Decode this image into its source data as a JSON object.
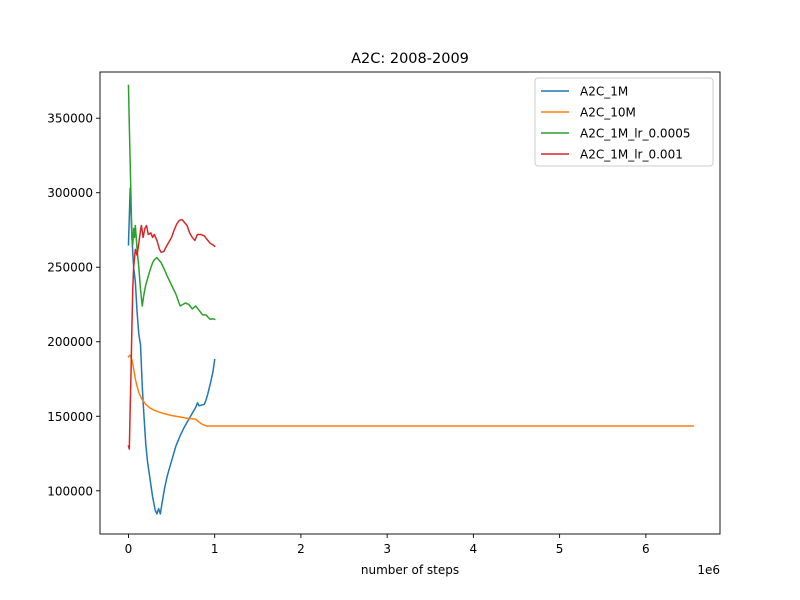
{
  "chart_data": {
    "type": "line",
    "title": "A2C: 2008-2009",
    "xlabel": "number of steps",
    "ylabel": "",
    "x_offset_label": "1e6",
    "xlim": [
      -0.33,
      6.86
    ],
    "ylim": [
      71000,
      381000
    ],
    "x_ticks": [
      0,
      1,
      2,
      3,
      4,
      5,
      6
    ],
    "x_tick_labels": [
      "0",
      "1",
      "2",
      "3",
      "4",
      "5",
      "6"
    ],
    "y_ticks": [
      100000,
      150000,
      200000,
      250000,
      300000,
      350000
    ],
    "y_tick_labels": [
      "100000",
      "150000",
      "200000",
      "250000",
      "300000",
      "350000"
    ],
    "grid": false,
    "legend_position": "upper right",
    "series": [
      {
        "name": "A2C_1M",
        "color": "#1f77b4",
        "points": [
          [
            0.0,
            265000
          ],
          [
            0.02,
            303000
          ],
          [
            0.04,
            270000
          ],
          [
            0.06,
            250000
          ],
          [
            0.08,
            240000
          ],
          [
            0.1,
            220000
          ],
          [
            0.12,
            205000
          ],
          [
            0.14,
            198000
          ],
          [
            0.16,
            170000
          ],
          [
            0.18,
            150000
          ],
          [
            0.2,
            132000
          ],
          [
            0.22,
            120000
          ],
          [
            0.25,
            108000
          ],
          [
            0.28,
            96000
          ],
          [
            0.31,
            87000
          ],
          [
            0.33,
            84500
          ],
          [
            0.35,
            88000
          ],
          [
            0.37,
            84500
          ],
          [
            0.39,
            92000
          ],
          [
            0.42,
            102000
          ],
          [
            0.45,
            110000
          ],
          [
            0.5,
            120000
          ],
          [
            0.55,
            130000
          ],
          [
            0.6,
            137000
          ],
          [
            0.65,
            143000
          ],
          [
            0.7,
            148000
          ],
          [
            0.75,
            153000
          ],
          [
            0.78,
            156000
          ],
          [
            0.8,
            159000
          ],
          [
            0.82,
            157000
          ],
          [
            0.85,
            157500
          ],
          [
            0.88,
            158000
          ],
          [
            0.9,
            161000
          ],
          [
            0.92,
            165000
          ],
          [
            0.95,
            172000
          ],
          [
            0.98,
            180000
          ],
          [
            1.0,
            188000
          ]
        ]
      },
      {
        "name": "A2C_10M",
        "color": "#ff7f0e",
        "points": [
          [
            0.0,
            190000
          ],
          [
            0.02,
            191000
          ],
          [
            0.04,
            188000
          ],
          [
            0.06,
            182000
          ],
          [
            0.08,
            175000
          ],
          [
            0.1,
            170000
          ],
          [
            0.12,
            166000
          ],
          [
            0.15,
            162000
          ],
          [
            0.2,
            158000
          ],
          [
            0.25,
            155500
          ],
          [
            0.3,
            154000
          ],
          [
            0.4,
            152000
          ],
          [
            0.5,
            150500
          ],
          [
            0.6,
            149500
          ],
          [
            0.7,
            148500
          ],
          [
            0.78,
            148000
          ],
          [
            0.82,
            146000
          ],
          [
            0.86,
            144500
          ],
          [
            0.9,
            143500
          ],
          [
            1.0,
            143500
          ],
          [
            2.0,
            143500
          ],
          [
            3.0,
            143500
          ],
          [
            4.0,
            143500
          ],
          [
            5.0,
            143500
          ],
          [
            6.0,
            143500
          ],
          [
            6.55,
            143500
          ]
        ]
      },
      {
        "name": "A2C_1M_lr_0.0005",
        "color": "#2ca02c",
        "points": [
          [
            0.0,
            372000
          ],
          [
            0.01,
            345000
          ],
          [
            0.02,
            320000
          ],
          [
            0.03,
            295000
          ],
          [
            0.04,
            270000
          ],
          [
            0.05,
            265000
          ],
          [
            0.06,
            276000
          ],
          [
            0.07,
            270000
          ],
          [
            0.08,
            278000
          ],
          [
            0.1,
            262000
          ],
          [
            0.12,
            250000
          ],
          [
            0.14,
            235000
          ],
          [
            0.16,
            224000
          ],
          [
            0.18,
            232000
          ],
          [
            0.2,
            238000
          ],
          [
            0.22,
            242000
          ],
          [
            0.25,
            248000
          ],
          [
            0.28,
            253000
          ],
          [
            0.3,
            255000
          ],
          [
            0.33,
            256500
          ],
          [
            0.35,
            255000
          ],
          [
            0.38,
            253000
          ],
          [
            0.42,
            248000
          ],
          [
            0.45,
            244000
          ],
          [
            0.5,
            238000
          ],
          [
            0.55,
            232000
          ],
          [
            0.58,
            227000
          ],
          [
            0.6,
            224000
          ],
          [
            0.63,
            225000
          ],
          [
            0.66,
            226000
          ],
          [
            0.7,
            225000
          ],
          [
            0.74,
            222000
          ],
          [
            0.78,
            224000
          ],
          [
            0.82,
            221000
          ],
          [
            0.86,
            218000
          ],
          [
            0.9,
            218000
          ],
          [
            0.93,
            216000
          ],
          [
            0.95,
            215000
          ],
          [
            0.98,
            215500
          ],
          [
            1.0,
            215000
          ]
        ]
      },
      {
        "name": "A2C_1M_lr_0.001",
        "color": "#d62728",
        "points": [
          [
            0.0,
            130000
          ],
          [
            0.01,
            128000
          ],
          [
            0.02,
            155000
          ],
          [
            0.03,
            180000
          ],
          [
            0.04,
            210000
          ],
          [
            0.05,
            235000
          ],
          [
            0.06,
            250000
          ],
          [
            0.08,
            262000
          ],
          [
            0.1,
            258000
          ],
          [
            0.12,
            266000
          ],
          [
            0.14,
            275000
          ],
          [
            0.15,
            278000
          ],
          [
            0.17,
            270000
          ],
          [
            0.19,
            276000
          ],
          [
            0.21,
            278000
          ],
          [
            0.23,
            272000
          ],
          [
            0.26,
            273000
          ],
          [
            0.28,
            270000
          ],
          [
            0.3,
            272000
          ],
          [
            0.33,
            268000
          ],
          [
            0.36,
            262000
          ],
          [
            0.38,
            260000
          ],
          [
            0.41,
            260500
          ],
          [
            0.44,
            264000
          ],
          [
            0.47,
            267000
          ],
          [
            0.5,
            270000
          ],
          [
            0.53,
            275000
          ],
          [
            0.56,
            279000
          ],
          [
            0.59,
            281500
          ],
          [
            0.62,
            282000
          ],
          [
            0.65,
            280000
          ],
          [
            0.68,
            278000
          ],
          [
            0.71,
            273000
          ],
          [
            0.74,
            270000
          ],
          [
            0.77,
            268000
          ],
          [
            0.8,
            272000
          ],
          [
            0.84,
            272000
          ],
          [
            0.88,
            271000
          ],
          [
            0.92,
            268000
          ],
          [
            0.95,
            266000
          ],
          [
            0.98,
            265000
          ],
          [
            1.0,
            264000
          ]
        ]
      }
    ]
  }
}
